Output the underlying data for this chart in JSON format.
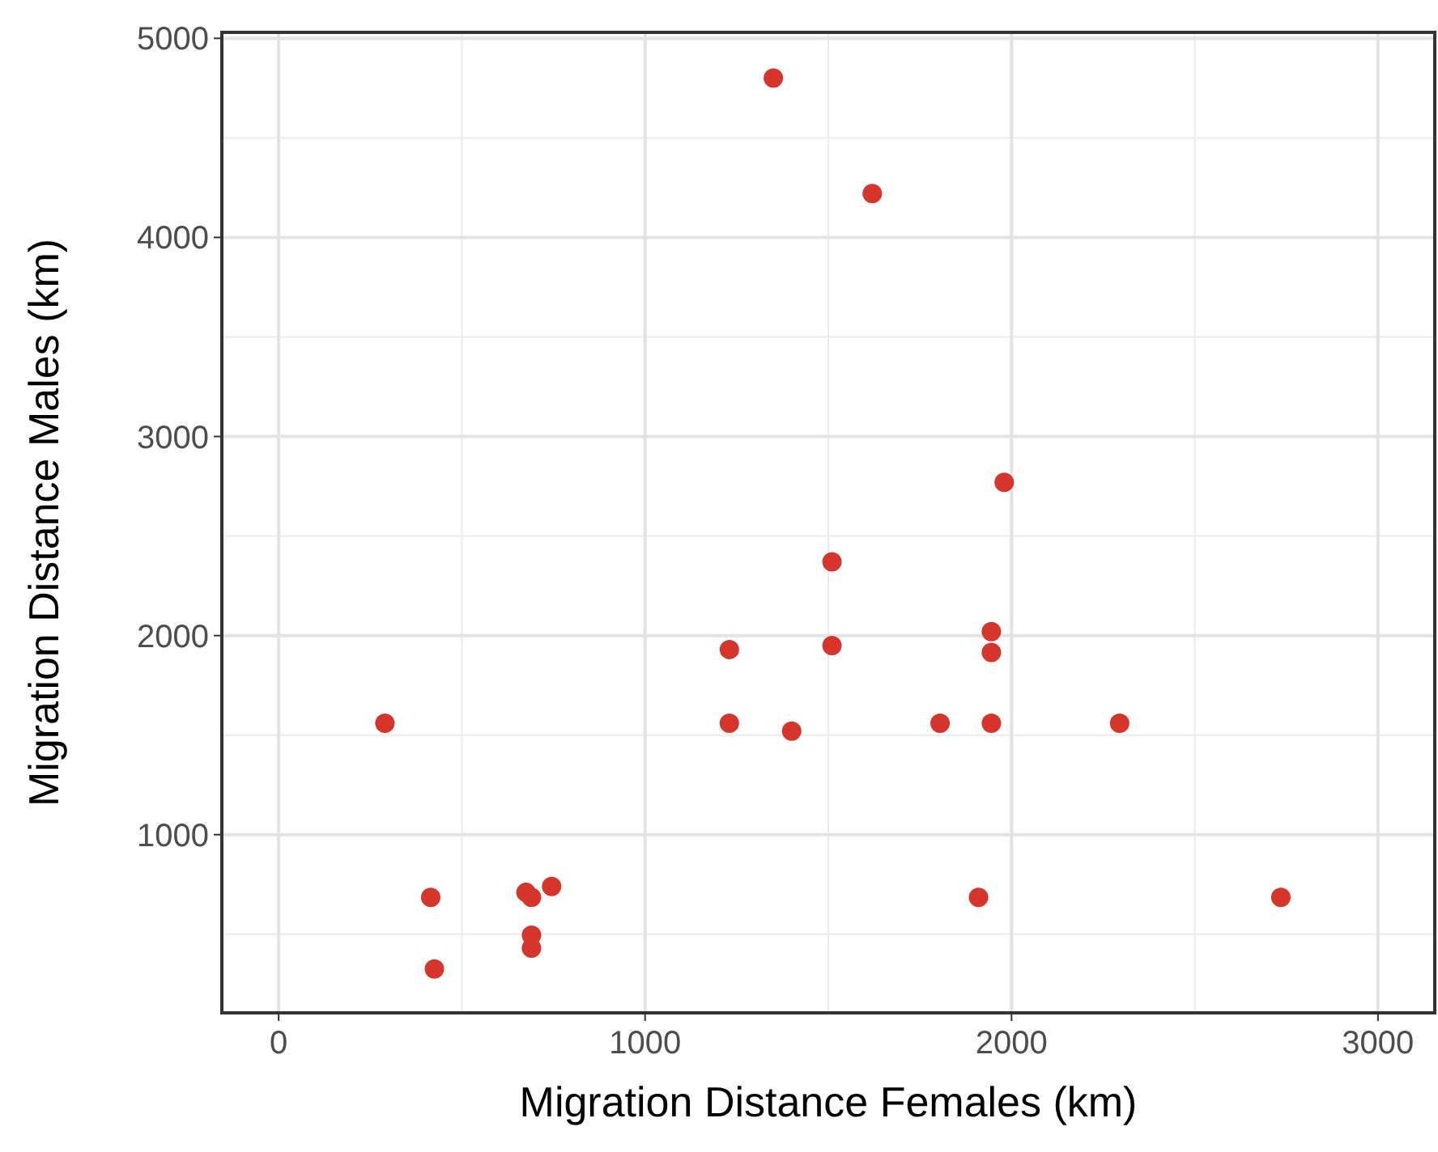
{
  "chart_data": {
    "type": "scatter",
    "xlabel": "Migration Distance Females (km)",
    "ylabel": "Migration Distance Males (km)",
    "x": [
      1350,
      1620,
      1980,
      1510,
      1945,
      1945,
      1510,
      1230,
      290,
      1230,
      1400,
      1805,
      1945,
      2295,
      415,
      675,
      690,
      745,
      690,
      690,
      425,
      1910,
      2735
    ],
    "values": [
      4800,
      4220,
      2770,
      2370,
      2020,
      1915,
      1950,
      1930,
      1560,
      1560,
      1520,
      1560,
      1560,
      1560,
      685,
      710,
      685,
      740,
      495,
      430,
      325,
      685,
      685
    ],
    "color": "#d6352b",
    "marker": "circle",
    "grid": true,
    "xlim": [
      -155,
      3155
    ],
    "xticks": [
      0,
      1000,
      2000,
      3000
    ],
    "ylim": [
      105,
      5030
    ],
    "yticks": [
      1000,
      2000,
      3000,
      4000,
      5000
    ]
  }
}
